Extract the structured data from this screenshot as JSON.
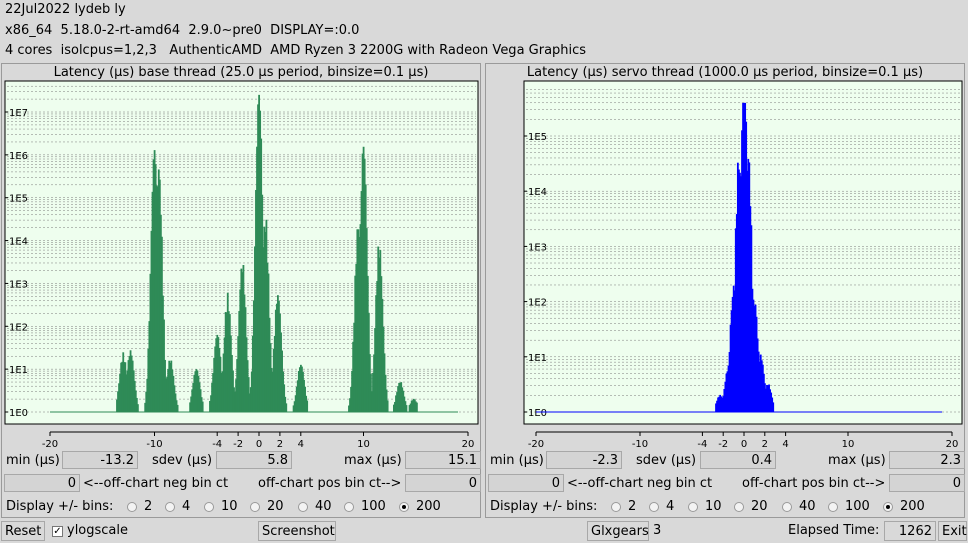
{
  "header": {
    "line1": "22Jul2022 lydeb ly",
    "line2": "x86_64  5.18.0-2-rt-amd64  2.9.0~pre0  DISPLAY=:0.0",
    "line3": "4 cores  isolcpus=1,2,3   AuthenticAMD  AMD Ryzen 3 2200G with Radeon Vega Graphics"
  },
  "colors": {
    "base_bar": "#2e8b57",
    "servo_bar": "#0000ff",
    "plot_bg": "#eefeee"
  },
  "panels": [
    {
      "title": "Latency (µs) base thread (25.0 µs period, binsize=0.1 µs)",
      "min_label": "min (µs)",
      "min_value": "-13.2",
      "sdev_label": "sdev (µs)",
      "sdev_value": "5.8",
      "max_label": "max (µs)",
      "max_value": "15.1",
      "neg_value": "0",
      "neg_label": "<--off-chart neg bin ct",
      "pos_label": "off-chart pos bin ct-->",
      "pos_value": "0",
      "bins_label": "Display +/- bins:",
      "bins": [
        "2",
        "4",
        "10",
        "20",
        "40",
        "100",
        "200"
      ],
      "selected_bin": "200"
    },
    {
      "title": "Latency (µs) servo thread (1000.0 µs period, binsize=0.1 µs)",
      "min_label": "min (µs)",
      "min_value": "-2.3",
      "sdev_label": "sdev (µs)",
      "sdev_value": "0.4",
      "max_label": "max (µs)",
      "max_value": "2.3",
      "neg_value": "0",
      "neg_label": "<--off-chart neg bin ct",
      "pos_label": "off-chart pos bin ct-->",
      "pos_value": "0",
      "bins_label": "Display +/- bins:",
      "bins": [
        "2",
        "4",
        "10",
        "20",
        "40",
        "100",
        "200"
      ],
      "selected_bin": "200"
    }
  ],
  "chart_data": [
    {
      "type": "bar",
      "title": "Latency (µs) base thread (25.0 µs period, binsize=0.1 µs)",
      "xlim": [
        -20,
        20
      ],
      "x_ticks": [
        -20,
        -10,
        -4,
        -2,
        0,
        2,
        4,
        10,
        20
      ],
      "y_scale": "log",
      "y_ticks": [
        "1E0",
        "1E1",
        "1E2",
        "1E3",
        "1E4",
        "1E5",
        "1E6",
        "1E7"
      ],
      "peaks": [
        {
          "x": -13.0,
          "log10_count": 1.3
        },
        {
          "x": -12.3,
          "log10_count": 1.4
        },
        {
          "x": -10.0,
          "log10_count": 6.1
        },
        {
          "x": -9.6,
          "log10_count": 5.6
        },
        {
          "x": -8.5,
          "log10_count": 1.2
        },
        {
          "x": -6.0,
          "log10_count": 1.0
        },
        {
          "x": -4.0,
          "log10_count": 1.8
        },
        {
          "x": -3.0,
          "log10_count": 2.6
        },
        {
          "x": -1.6,
          "log10_count": 3.4
        },
        {
          "x": 0.0,
          "log10_count": 7.4
        },
        {
          "x": 0.6,
          "log10_count": 4.4
        },
        {
          "x": 1.8,
          "log10_count": 2.7
        },
        {
          "x": 4.0,
          "log10_count": 1.1
        },
        {
          "x": 9.5,
          "log10_count": 4.3
        },
        {
          "x": 10.0,
          "log10_count": 6.2
        },
        {
          "x": 11.5,
          "log10_count": 3.8
        },
        {
          "x": 13.5,
          "log10_count": 0.7
        },
        {
          "x": 14.8,
          "log10_count": 0.3
        }
      ]
    },
    {
      "type": "bar",
      "title": "Latency (µs) servo thread (1000.0 µs period, binsize=0.1 µs)",
      "xlim": [
        -20,
        20
      ],
      "x_ticks": [
        -20,
        -10,
        -4,
        -2,
        0,
        2,
        4,
        10,
        20
      ],
      "y_scale": "log",
      "y_ticks": [
        "1E0",
        "1E1",
        "1E2",
        "1E3",
        "1E4",
        "1E5"
      ],
      "peaks": [
        {
          "x": -2.3,
          "log10_count": 0.3
        },
        {
          "x": -1.5,
          "log10_count": 0.8
        },
        {
          "x": -1.0,
          "log10_count": 2.2
        },
        {
          "x": -0.5,
          "log10_count": 4.5
        },
        {
          "x": 0.0,
          "log10_count": 6.1
        },
        {
          "x": 0.4,
          "log10_count": 4.6
        },
        {
          "x": 1.0,
          "log10_count": 2.0
        },
        {
          "x": 1.6,
          "log10_count": 1.0
        },
        {
          "x": 2.3,
          "log10_count": 0.5
        }
      ]
    }
  ],
  "bottom": {
    "reset_label": "Reset",
    "ylog_label": "ylogscale",
    "ylog_checked": "✓",
    "screenshot_label": "Screenshot",
    "glxgears_label": "Glxgears",
    "glxgears_count": "3",
    "elapsed_label": "Elapsed Time:",
    "elapsed_value": "1262",
    "exit_label": "Exit"
  }
}
